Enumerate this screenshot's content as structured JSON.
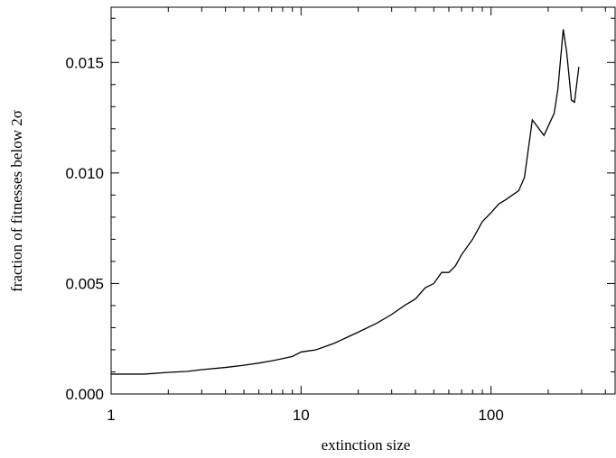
{
  "chart_data": {
    "type": "line",
    "title": "",
    "xlabel": "extinction size",
    "ylabel": "fraction of fitnesses below 2σ",
    "xscale": "log",
    "xlim": [
      1,
      450
    ],
    "ylim": [
      0,
      0.0175
    ],
    "grid": false,
    "legend": "none",
    "x_ticks": [
      {
        "value": 1,
        "label": "1"
      },
      {
        "value": 10,
        "label": "10"
      },
      {
        "value": 100,
        "label": "100"
      }
    ],
    "y_ticks": [
      {
        "value": 0,
        "label": "0.000"
      },
      {
        "value": 0.005,
        "label": "0.005"
      },
      {
        "value": 0.01,
        "label": "0.010"
      },
      {
        "value": 0.015,
        "label": "0.015"
      }
    ],
    "series": [
      {
        "color": "#000000",
        "x": [
          1,
          1.5,
          2,
          2.5,
          3,
          4,
          5,
          6,
          7,
          8,
          9,
          10,
          12,
          15,
          20,
          25,
          30,
          35,
          40,
          45,
          50,
          55,
          60,
          65,
          70,
          80,
          90,
          100,
          110,
          120,
          140,
          150,
          165,
          190,
          215,
          225,
          240,
          250,
          265,
          275,
          290
        ],
        "y": [
          0.0009,
          0.0009,
          0.00098,
          0.00102,
          0.0011,
          0.0012,
          0.0013,
          0.0014,
          0.0015,
          0.0016,
          0.0017,
          0.0019,
          0.002,
          0.0023,
          0.0028,
          0.0032,
          0.0036,
          0.004,
          0.0043,
          0.0048,
          0.005,
          0.0055,
          0.0055,
          0.0058,
          0.0063,
          0.007,
          0.0078,
          0.0082,
          0.0086,
          0.0088,
          0.0092,
          0.0098,
          0.0124,
          0.0117,
          0.0127,
          0.0138,
          0.0165,
          0.0155,
          0.0133,
          0.0132,
          0.0148
        ]
      }
    ]
  }
}
